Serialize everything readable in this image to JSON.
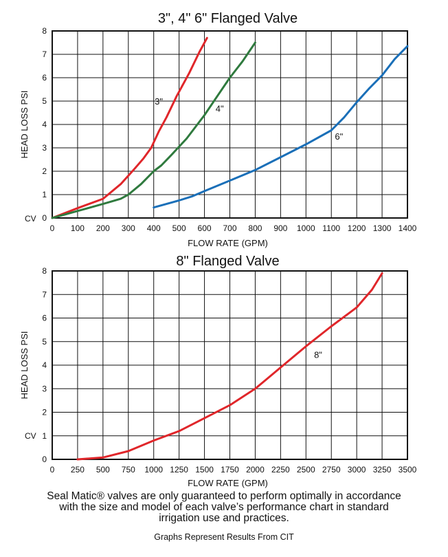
{
  "chart_data": [
    {
      "type": "line",
      "title": "3\", 4\" 6\" Flanged Valve",
      "xlabel": "FLOW RATE (GPM)",
      "ylabel": "HEAD  LOSS PSI",
      "cv_label": "CV",
      "xlim": [
        0,
        1400
      ],
      "ylim": [
        0,
        8
      ],
      "xticks": [
        0,
        100,
        200,
        300,
        400,
        500,
        600,
        700,
        800,
        900,
        1000,
        1100,
        1200,
        1300,
        1400
      ],
      "yticks": [
        0,
        1,
        2,
        3,
        4,
        5,
        6,
        7,
        8
      ],
      "grid": true,
      "series": [
        {
          "name": "3\"",
          "color": "#e0262a",
          "x": [
            0,
            100,
            200,
            270,
            320,
            360,
            390,
            420,
            450,
            490,
            540,
            580,
            610
          ],
          "y": [
            0,
            0.42,
            0.82,
            1.45,
            2.05,
            2.55,
            3.0,
            3.7,
            4.3,
            5.2,
            6.2,
            7.1,
            7.7
          ]
        },
        {
          "name": "4\"",
          "color": "#2f7a3e",
          "x": [
            0,
            100,
            200,
            270,
            300,
            350,
            400,
            430,
            470,
            530,
            600,
            650,
            700,
            750,
            800
          ],
          "y": [
            0,
            0.3,
            0.6,
            0.82,
            1.0,
            1.45,
            2.0,
            2.25,
            2.7,
            3.4,
            4.4,
            5.2,
            6.0,
            6.7,
            7.5
          ]
        },
        {
          "name": "6\"",
          "color": "#1a6fb8",
          "x": [
            400,
            500,
            550,
            600,
            700,
            800,
            900,
            1000,
            1100,
            1150,
            1200,
            1250,
            1300,
            1350,
            1400
          ],
          "y": [
            0.45,
            0.75,
            0.92,
            1.15,
            1.6,
            2.05,
            2.6,
            3.15,
            3.75,
            4.3,
            4.95,
            5.55,
            6.1,
            6.8,
            7.35
          ]
        }
      ],
      "series_labels": [
        {
          "text": "3\"",
          "x": 420,
          "y": 4.85
        },
        {
          "text": "4\"",
          "x": 660,
          "y": 4.55
        },
        {
          "text": "6\"",
          "x": 1130,
          "y": 3.35
        }
      ]
    },
    {
      "type": "line",
      "title": "8\" Flanged Valve",
      "xlabel": "FLOW RATE (GPM)",
      "ylabel": "HEAD  LOSS PSI",
      "cv_label": "CV",
      "xlim": [
        0,
        3500
      ],
      "ylim": [
        0,
        8
      ],
      "xticks": [
        0,
        250,
        500,
        750,
        1000,
        1250,
        1500,
        1750,
        2000,
        2250,
        2500,
        2750,
        3000,
        3250,
        3500
      ],
      "yticks": [
        0,
        1,
        2,
        3,
        4,
        5,
        6,
        7,
        8
      ],
      "grid": true,
      "series": [
        {
          "name": "8\"",
          "color": "#e0262a",
          "x": [
            250,
            500,
            750,
            1000,
            1250,
            1500,
            1750,
            2000,
            2250,
            2500,
            2750,
            3000,
            3150,
            3250
          ],
          "y": [
            0,
            0.08,
            0.35,
            0.8,
            1.2,
            1.75,
            2.3,
            3.0,
            3.9,
            4.8,
            5.65,
            6.45,
            7.2,
            7.9
          ]
        }
      ],
      "series_labels": [
        {
          "text": "8\"",
          "x": 2620,
          "y": 4.3
        }
      ]
    }
  ],
  "footer": {
    "disclaimer_lines": [
      "Seal Matic® valves are only guaranteed to perform optimally in accordance",
      "with the size and model of each valve’s performance chart in standard",
      "irrigation use and practices."
    ],
    "source": "Graphs Represent Results From CIT"
  }
}
